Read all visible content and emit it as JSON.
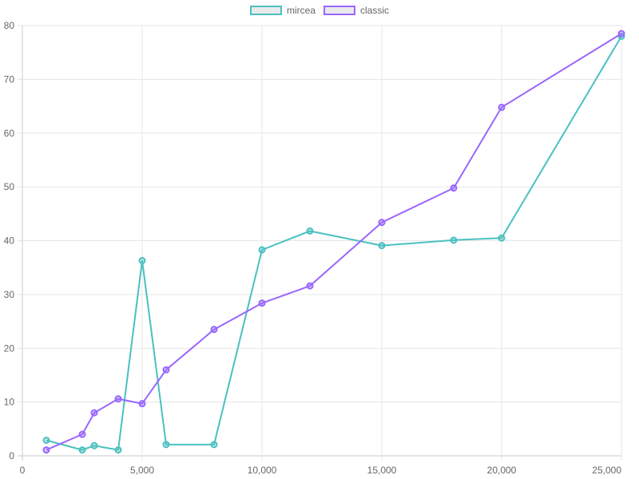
{
  "chart_data": {
    "type": "line",
    "title": "",
    "xlabel": "",
    "ylabel": "",
    "xlim": [
      0,
      25000
    ],
    "ylim": [
      0,
      80
    ],
    "grid": true,
    "legend_position": "top",
    "x_ticks": [
      0,
      5000,
      10000,
      15000,
      20000,
      25000
    ],
    "x_tick_labels": [
      "0",
      "5,000",
      "10,000",
      "15,000",
      "20,000",
      "25,000"
    ],
    "y_ticks": [
      0,
      10,
      20,
      30,
      40,
      50,
      60,
      70,
      80
    ],
    "y_tick_labels": [
      "0",
      "10",
      "20",
      "30",
      "40",
      "50",
      "60",
      "70",
      "80"
    ],
    "series": [
      {
        "name": "mircea",
        "color": "#4bc0c0",
        "points": [
          [
            1000,
            2.9
          ],
          [
            2500,
            1.1
          ],
          [
            3000,
            1.9
          ],
          [
            4000,
            1.1
          ],
          [
            5000,
            36.3
          ],
          [
            6000,
            2.1
          ],
          [
            8000,
            2.1
          ],
          [
            10000,
            38.3
          ],
          [
            12000,
            41.8
          ],
          [
            15000,
            39.1
          ],
          [
            18000,
            40.1
          ],
          [
            20000,
            40.5
          ],
          [
            25000,
            78.0
          ]
        ]
      },
      {
        "name": "classic",
        "color": "#9966ff",
        "points": [
          [
            1000,
            1.1
          ],
          [
            2500,
            4.0
          ],
          [
            3000,
            8.0
          ],
          [
            4000,
            10.6
          ],
          [
            5000,
            9.7
          ],
          [
            6000,
            16.0
          ],
          [
            8000,
            23.5
          ],
          [
            10000,
            28.4
          ],
          [
            12000,
            31.6
          ],
          [
            15000,
            43.4
          ],
          [
            18000,
            49.8
          ],
          [
            20000,
            64.8
          ],
          [
            25000,
            78.5
          ]
        ]
      }
    ]
  }
}
